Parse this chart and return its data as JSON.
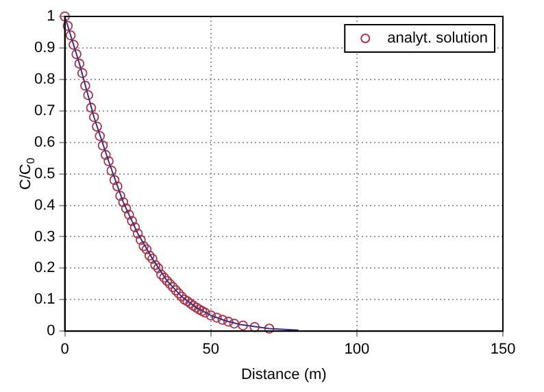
{
  "chart_data": {
    "type": "scatter",
    "xlabel": "Distance (m)",
    "ylabel": "C/C$_{0}$",
    "xlim": [
      0,
      150
    ],
    "xticks": [
      0,
      50,
      100,
      150
    ],
    "ylim": [
      0,
      1
    ],
    "yticks": [
      0,
      0.1,
      0.2,
      0.3,
      0.4,
      0.5,
      0.6,
      0.7,
      0.8,
      0.9,
      1
    ],
    "grid": true,
    "legend": "top right",
    "series": [
      {
        "type": "line",
        "color": "#3a2f80",
        "marker": "none",
        "x": [
          0,
          5,
          10,
          15,
          20,
          25,
          30,
          35,
          40,
          45,
          50,
          55,
          60,
          70,
          80
        ],
        "values": [
          1,
          0.85,
          0.68,
          0.54,
          0.41,
          0.31,
          0.23,
          0.16,
          0.11,
          0.075,
          0.05,
          0.033,
          0.021,
          0.008,
          0.003
        ]
      },
      {
        "name": "analyt. solution",
        "color": "#b03045",
        "marker": "circle",
        "x": [
          0,
          1,
          2,
          3,
          4,
          5,
          6,
          7,
          8,
          9,
          10,
          11,
          12,
          13,
          14,
          15,
          16,
          17,
          18,
          19,
          20,
          21,
          22,
          23,
          24,
          25,
          26,
          27,
          28,
          29,
          30,
          31,
          32,
          33,
          34,
          35,
          36,
          37,
          38,
          39,
          40,
          41,
          42,
          43,
          44,
          45,
          46,
          47,
          48,
          50,
          52,
          54,
          56,
          58,
          61,
          65,
          70
        ],
        "values": [
          1,
          0.97,
          0.94,
          0.91,
          0.88,
          0.85,
          0.82,
          0.78,
          0.75,
          0.71,
          0.68,
          0.65,
          0.62,
          0.59,
          0.56,
          0.54,
          0.51,
          0.48,
          0.46,
          0.43,
          0.41,
          0.39,
          0.37,
          0.35,
          0.33,
          0.31,
          0.29,
          0.27,
          0.26,
          0.24,
          0.23,
          0.21,
          0.2,
          0.18,
          0.17,
          0.16,
          0.15,
          0.14,
          0.13,
          0.12,
          0.11,
          0.1,
          0.095,
          0.088,
          0.081,
          0.075,
          0.069,
          0.064,
          0.059,
          0.05,
          0.043,
          0.036,
          0.03,
          0.024,
          0.018,
          0.013,
          0.008
        ]
      }
    ]
  }
}
